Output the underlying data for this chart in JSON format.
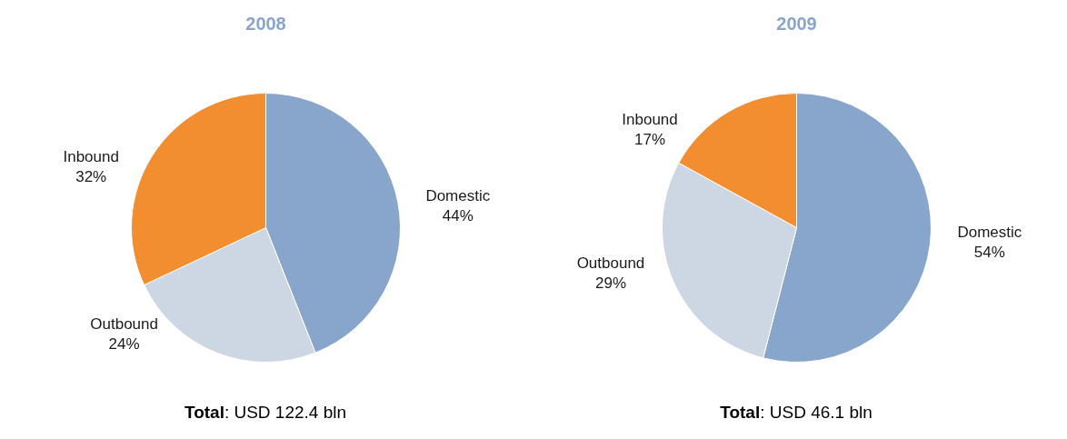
{
  "chart_data": [
    {
      "type": "pie",
      "title": "2008",
      "categories": [
        "Domestic",
        "Outbound",
        "Inbound"
      ],
      "values": [
        44,
        24,
        32
      ],
      "colors": [
        "#88a5cc",
        "#cdd6e3",
        "#f28e30"
      ],
      "value_labels": [
        "44%",
        "24%",
        "32%"
      ],
      "annotations": [
        "Total: USD 122.4 bln"
      ]
    },
    {
      "type": "pie",
      "title": "2009",
      "categories": [
        "Domestic",
        "Outbound",
        "Inbound"
      ],
      "values": [
        54,
        29,
        17
      ],
      "colors": [
        "#88a5cc",
        "#cdd6e3",
        "#f28e30"
      ],
      "value_labels": [
        "54%",
        "29%",
        "17%"
      ],
      "annotations": [
        "Total: USD 46.1 bln"
      ]
    }
  ]
}
